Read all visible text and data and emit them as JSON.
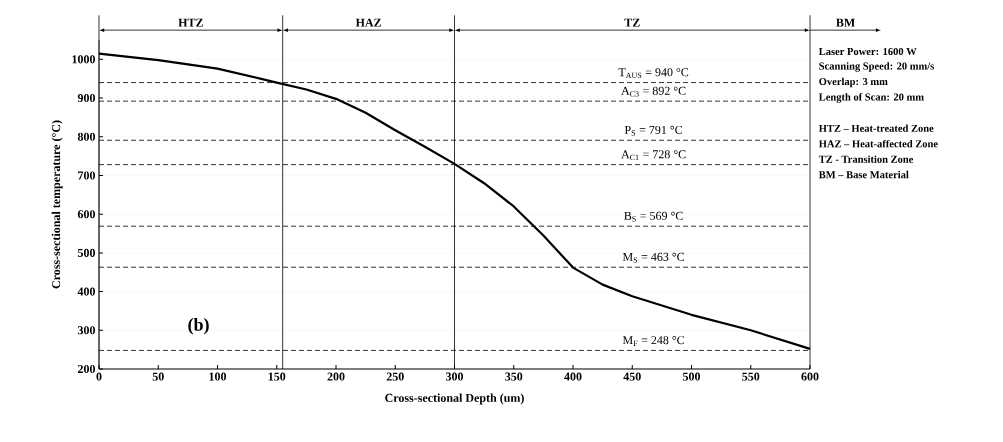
{
  "chart_data": {
    "type": "line",
    "xlabel": "Cross-sectional Depth (um)",
    "ylabel": "Cross-sectional temperature (°C)",
    "x": [
      0,
      50,
      100,
      150,
      175,
      200,
      225,
      250,
      275,
      300,
      325,
      350,
      375,
      400,
      425,
      450,
      500,
      550,
      600
    ],
    "series": [
      {
        "color": "#000000",
        "values": [
          1015,
          998,
          976,
          940,
          922,
          898,
          862,
          817,
          774,
          730,
          680,
          620,
          545,
          462,
          418,
          388,
          340,
          300,
          252
        ]
      }
    ],
    "xlim": [
      0,
      600
    ],
    "xticks": [
      0,
      50,
      100,
      150,
      200,
      250,
      300,
      350,
      400,
      450,
      500,
      550,
      600
    ],
    "ylim": [
      200,
      1050
    ],
    "yticks": [
      200,
      300,
      400,
      500,
      600,
      700,
      800,
      900,
      1000
    ],
    "grid": "y",
    "marker": "none",
    "line_style": "solid",
    "ref_lines": [
      {
        "axis": "x",
        "value": 155,
        "line_style": "solid",
        "color": "#000000"
      },
      {
        "axis": "x",
        "value": 300,
        "line_style": "solid",
        "color": "#000000"
      },
      {
        "axis": "y",
        "value": 940,
        "label": "T$_{AUS}$ = 940 °C",
        "line_style": "dashed",
        "color": "#000000"
      },
      {
        "axis": "y",
        "value": 892,
        "label": "A$_{C3}$ = 892 °C",
        "line_style": "dashed",
        "color": "#000000"
      },
      {
        "axis": "y",
        "value": 791,
        "label": "P$_{S}$ = 791 °C",
        "line_style": "dashed",
        "color": "#000000"
      },
      {
        "axis": "y",
        "value": 728,
        "label": "A$_{C1}$ = 728 °C",
        "line_style": "dashed",
        "color": "#000000"
      },
      {
        "axis": "y",
        "value": 569,
        "label": "B$_{S}$ = 569 °C",
        "line_style": "dashed",
        "color": "#000000"
      },
      {
        "axis": "y",
        "value": 463,
        "label": "M$_{S}$ = 463 °C",
        "line_style": "dashed",
        "color": "#000000"
      },
      {
        "axis": "y",
        "value": 248,
        "label": "M$_{F}$ = 248 °C",
        "line_style": "dashed",
        "color": "#000000"
      }
    ],
    "annotations": [
      "(b)",
      "HTZ",
      "HAZ",
      "TZ",
      "BM",
      "Laser Power: 1600 W",
      "Scanning Speed: 20 mm/s",
      "Overlap: 3 mm",
      "Length of Scan: 20 mm",
      "HTZ – Heat-treated Zone",
      "HAZ – Heat-affected Zone",
      "TZ -  Transition Zone",
      "BM – Base Material"
    ]
  }
}
